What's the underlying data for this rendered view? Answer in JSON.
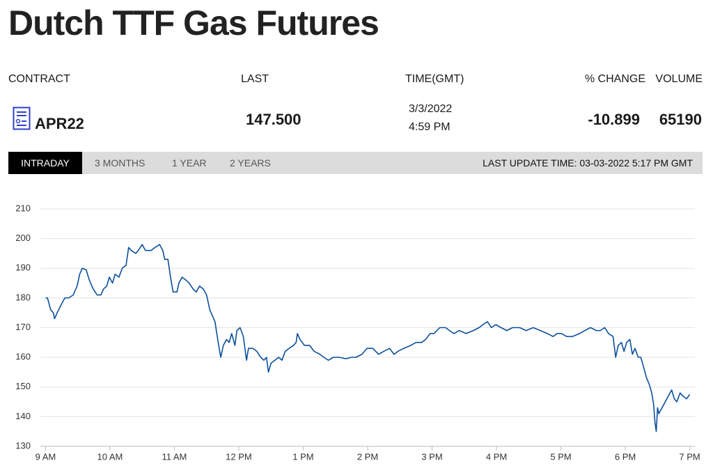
{
  "header": {
    "title": "Dutch TTF Gas Futures"
  },
  "table": {
    "columns": [
      "CONTRACT",
      "LAST",
      "TIME(GMT)",
      "% CHANGE",
      "VOLUME"
    ],
    "row": {
      "contract": "APR22",
      "last": "147.500",
      "time_date": "3/3/2022",
      "time_clock": "4:59 PM",
      "change": "-10.899",
      "volume": "65190"
    }
  },
  "tabs": [
    "INTRADAY",
    "3 MONTHS",
    "1 YEAR",
    "2 YEARS"
  ],
  "last_update": "LAST UPDATE TIME: 03-03-2022 5:17 PM GMT",
  "chart_data": {
    "type": "line",
    "color": "#0b4f9c",
    "grid": true,
    "x": [
      9.0,
      9.03,
      9.08,
      9.12,
      9.14,
      9.18,
      9.25,
      9.3,
      9.36,
      9.43,
      9.49,
      9.53,
      9.57,
      9.63,
      9.68,
      9.74,
      9.8,
      9.86,
      9.9,
      9.95,
      9.99,
      10.04,
      10.08,
      10.14,
      10.19,
      10.25,
      10.29,
      10.33,
      10.4,
      10.44,
      10.5,
      10.55,
      10.64,
      10.7,
      10.77,
      10.82,
      10.85,
      10.9,
      10.94,
      10.98,
      11.04,
      11.07,
      11.12,
      11.18,
      11.23,
      11.29,
      11.34,
      11.39,
      11.45,
      11.5,
      11.55,
      11.59,
      11.63,
      11.68,
      11.72,
      11.76,
      11.81,
      11.85,
      11.89,
      11.94,
      11.97,
      12.02,
      12.07,
      12.12,
      12.15,
      12.22,
      12.28,
      12.34,
      12.39,
      12.43,
      12.46,
      12.5,
      12.56,
      12.62,
      12.67,
      12.72,
      12.78,
      12.85,
      12.89,
      12.91,
      12.95,
      13.02,
      13.1,
      13.17,
      13.26,
      13.32,
      13.39,
      13.47,
      13.56,
      13.66,
      13.75,
      13.82,
      13.91,
      13.99,
      14.08,
      14.17,
      14.25,
      14.34,
      14.41,
      14.47,
      14.56,
      14.67,
      14.75,
      14.84,
      14.9,
      14.97,
      15.03,
      15.12,
      15.21,
      15.27,
      15.34,
      15.42,
      15.53,
      15.64,
      15.73,
      15.79,
      15.86,
      15.92,
      15.99,
      16.07,
      16.16,
      16.25,
      16.36,
      16.46,
      16.57,
      16.68,
      16.79,
      16.88,
      16.94,
      17.01,
      17.09,
      17.18,
      17.29,
      17.37,
      17.46,
      17.55,
      17.61,
      17.68,
      17.74,
      17.81,
      17.85,
      17.89,
      17.94,
      17.98,
      18.02,
      18.07,
      18.11,
      18.15,
      18.2,
      18.24,
      18.28,
      18.33,
      18.37,
      18.41,
      18.44,
      18.46,
      18.48,
      18.5,
      18.52,
      18.57,
      18.62,
      18.67,
      18.72,
      18.76,
      18.8,
      18.85,
      18.89,
      18.95,
      19.0
    ],
    "values": [
      180,
      180,
      176,
      175,
      173,
      175,
      178,
      180,
      180,
      181,
      184,
      188,
      190,
      189.5,
      186,
      183,
      181,
      181,
      183,
      184,
      187,
      185,
      188,
      187,
      190,
      191,
      197,
      196,
      195,
      196,
      198,
      196,
      196,
      197,
      198,
      196,
      193,
      193,
      187,
      182,
      182,
      185,
      187,
      186,
      185,
      183,
      182,
      184,
      183,
      181,
      176,
      174,
      172,
      165,
      160,
      164,
      166,
      165,
      168,
      164,
      169,
      170,
      167,
      159,
      163,
      163,
      162,
      160,
      159,
      160,
      155,
      158,
      159,
      160,
      159,
      162,
      163,
      164,
      165,
      168,
      166,
      164,
      164,
      162,
      161,
      160,
      159,
      160,
      160,
      159.5,
      160,
      160,
      161,
      163,
      163,
      161,
      162,
      163,
      161,
      162,
      163,
      164,
      165,
      165,
      166,
      168,
      168,
      170,
      170,
      169,
      168,
      169,
      168,
      169,
      170,
      171,
      172,
      170,
      171,
      170,
      169,
      170,
      170,
      169,
      170,
      169,
      168,
      167,
      168,
      168,
      167,
      167,
      168,
      169,
      170,
      169,
      169,
      170,
      168,
      167,
      160,
      164,
      165,
      162,
      165,
      166,
      161,
      163,
      160,
      160,
      157,
      153,
      151,
      148,
      144,
      138,
      135,
      143,
      141,
      143,
      145,
      147,
      149,
      146,
      145,
      148,
      147,
      146,
      147.5
    ],
    "xlim": [
      8.92,
      19.08
    ],
    "xticks": [
      {
        "value": 9,
        "label": "9 AM"
      },
      {
        "value": 10,
        "label": "10 AM"
      },
      {
        "value": 11,
        "label": "11 AM"
      },
      {
        "value": 12,
        "label": "12 PM"
      },
      {
        "value": 13,
        "label": "1 PM"
      },
      {
        "value": 14,
        "label": "2 PM"
      },
      {
        "value": 15,
        "label": "3 PM"
      },
      {
        "value": 16,
        "label": "4 PM"
      },
      {
        "value": 17,
        "label": "5 PM"
      },
      {
        "value": 18,
        "label": "6 PM"
      },
      {
        "value": 19,
        "label": "7 PM"
      }
    ],
    "ylim": [
      130,
      210
    ],
    "yticks": [
      130,
      140,
      150,
      160,
      170,
      180,
      190,
      200,
      210
    ]
  }
}
